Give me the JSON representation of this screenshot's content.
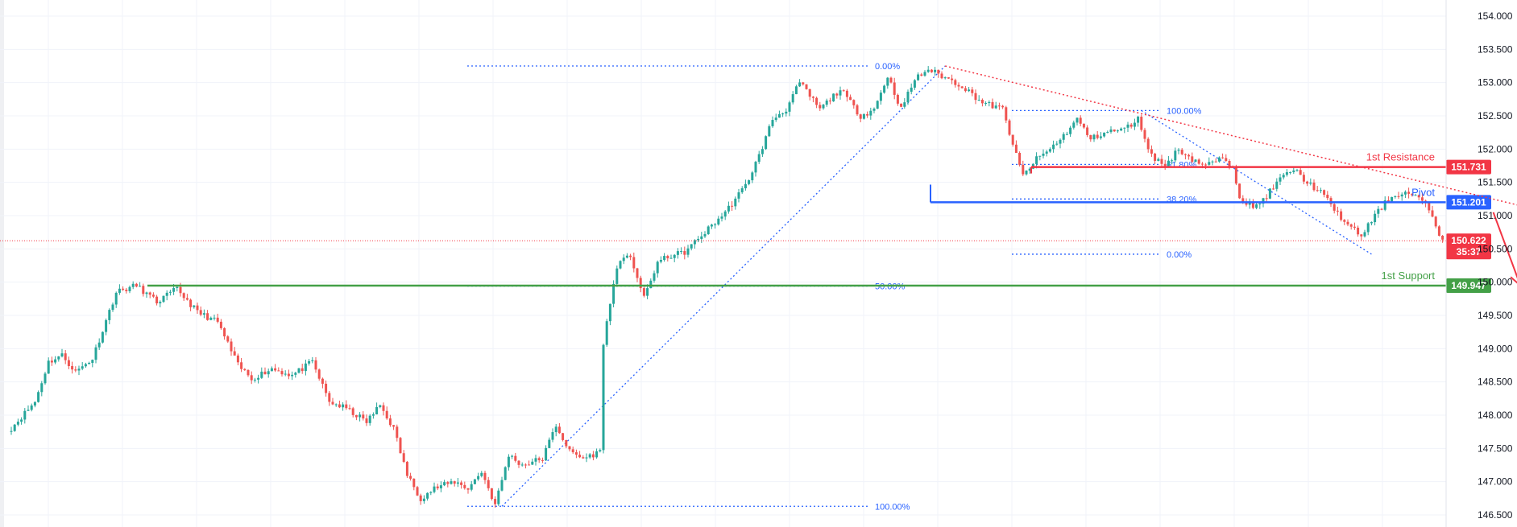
{
  "chart_data": {
    "type": "candlestick",
    "y_axis": {
      "position": "right",
      "min": 146.5,
      "max": 154.0,
      "ticks": [
        "146.500",
        "147.000",
        "147.500",
        "148.000",
        "148.500",
        "149.000",
        "149.500",
        "150.000",
        "150.500",
        "151.000",
        "151.500",
        "152.000",
        "152.500",
        "153.000",
        "153.500",
        "154.000"
      ]
    },
    "grid": true,
    "colors": {
      "up": "#26a69a",
      "down": "#ef5350",
      "resistance": "#f23645",
      "pivot": "#2962ff",
      "support": "#43a047",
      "fib": "#2962ff",
      "trend": "#f23645",
      "arrow": "#f23645",
      "current": "#f23645"
    },
    "legs": [
      [
        0,
        147.75
      ],
      [
        8,
        148.2
      ],
      [
        12,
        148.8
      ],
      [
        16,
        148.9
      ],
      [
        20,
        148.65
      ],
      [
        25,
        148.85
      ],
      [
        32,
        149.85
      ],
      [
        38,
        149.95
      ],
      [
        44,
        149.7
      ],
      [
        50,
        149.9
      ],
      [
        56,
        149.55
      ],
      [
        62,
        149.4
      ],
      [
        68,
        148.75
      ],
      [
        72,
        148.55
      ],
      [
        78,
        148.7
      ],
      [
        84,
        148.6
      ],
      [
        90,
        148.8
      ],
      [
        95,
        148.2
      ],
      [
        100,
        148.1
      ],
      [
        106,
        147.9
      ],
      [
        110,
        148.15
      ],
      [
        114,
        147.8
      ],
      [
        118,
        147.1
      ],
      [
        122,
        146.75
      ],
      [
        126,
        146.9
      ],
      [
        132,
        147.0
      ],
      [
        136,
        146.9
      ],
      [
        140,
        147.15
      ],
      [
        144,
        146.65
      ],
      [
        148,
        147.4
      ],
      [
        152,
        147.25
      ],
      [
        158,
        147.35
      ],
      [
        162,
        147.85
      ],
      [
        166,
        147.45
      ],
      [
        170,
        147.35
      ],
      [
        175,
        147.45
      ],
      [
        176,
        149.1
      ],
      [
        180,
        150.25
      ],
      [
        184,
        150.4
      ],
      [
        188,
        149.75
      ],
      [
        192,
        150.3
      ],
      [
        196,
        150.4
      ],
      [
        200,
        150.45
      ],
      [
        206,
        150.75
      ],
      [
        212,
        151.05
      ],
      [
        218,
        151.45
      ],
      [
        222,
        151.9
      ],
      [
        226,
        152.45
      ],
      [
        230,
        152.6
      ],
      [
        234,
        153.0
      ],
      [
        240,
        152.6
      ],
      [
        246,
        152.9
      ],
      [
        252,
        152.5
      ],
      [
        256,
        152.6
      ],
      [
        260,
        153.1
      ],
      [
        264,
        152.6
      ],
      [
        268,
        153.05
      ],
      [
        272,
        153.2
      ],
      [
        276,
        153.1
      ],
      [
        282,
        152.95
      ],
      [
        288,
        152.7
      ],
      [
        294,
        152.6
      ],
      [
        298,
        151.9
      ],
      [
        300,
        151.6
      ],
      [
        304,
        151.85
      ],
      [
        308,
        152.0
      ],
      [
        312,
        152.2
      ],
      [
        316,
        152.45
      ],
      [
        320,
        152.15
      ],
      [
        324,
        152.25
      ],
      [
        330,
        152.3
      ],
      [
        334,
        152.45
      ],
      [
        338,
        151.9
      ],
      [
        342,
        151.75
      ],
      [
        346,
        152.0
      ],
      [
        350,
        151.85
      ],
      [
        354,
        151.75
      ],
      [
        358,
        151.85
      ],
      [
        362,
        151.75
      ],
      [
        364,
        151.3
      ],
      [
        368,
        151.1
      ],
      [
        372,
        151.3
      ],
      [
        376,
        151.55
      ],
      [
        380,
        151.7
      ],
      [
        384,
        151.5
      ],
      [
        388,
        151.35
      ],
      [
        392,
        151.1
      ],
      [
        396,
        150.85
      ],
      [
        400,
        150.7
      ],
      [
        404,
        151.0
      ],
      [
        408,
        151.25
      ],
      [
        412,
        151.35
      ],
      [
        416,
        151.3
      ],
      [
        420,
        151.1
      ],
      [
        424,
        150.62
      ]
    ],
    "current_price": {
      "value": 150.622,
      "label": "150.622",
      "countdown": "35:37"
    },
    "levels": [
      {
        "name": "1st Resistance",
        "value": 151.731,
        "label": "151.731",
        "color": "#f23645"
      },
      {
        "name": "Pivot",
        "value": 151.201,
        "label": "151.201",
        "color": "#2962ff"
      },
      {
        "name": "1st Support",
        "value": 149.947,
        "label": "149.947",
        "color": "#43a047"
      }
    ],
    "fib_big": {
      "start": [
        145,
        146.63
      ],
      "end": [
        276,
        153.25
      ],
      "levels": [
        {
          "label": "0.00%",
          "value": 153.25
        },
        {
          "label": "50.00%",
          "value": 149.94
        },
        {
          "label": "100.00%",
          "value": 146.63
        }
      ]
    },
    "fib_small": {
      "start": [
        334,
        152.58
      ],
      "end": [
        402,
        150.42
      ],
      "levels": [
        {
          "label": "100.00%",
          "value": 152.58
        },
        {
          "label": "61.80%",
          "value": 151.77
        },
        {
          "label": "38.20%",
          "value": 151.25
        },
        {
          "label": "0.00%",
          "value": 150.42
        }
      ]
    },
    "trendline": {
      "from": [
        276,
        153.25
      ],
      "to": [
        450,
        151.1
      ]
    },
    "arrow": {
      "from": [
        438,
        151.05
      ],
      "to": [
        446,
        149.95
      ]
    }
  }
}
